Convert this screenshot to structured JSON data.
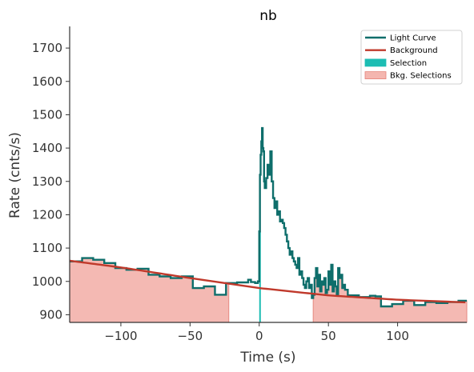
{
  "chart_data": {
    "type": "line",
    "title": "nb",
    "xlabel": "Time (s)",
    "ylabel": "Rate (cnts/s)",
    "xlim": [
      -137,
      150
    ],
    "ylim": [
      877,
      1765
    ],
    "xticks": [
      -100,
      -50,
      0,
      50,
      100
    ],
    "yticks": [
      900,
      1000,
      1100,
      1200,
      1300,
      1400,
      1500,
      1600,
      1700
    ],
    "grid": false,
    "legend_position": "top-right",
    "colors": {
      "light_curve": "#0e6e6b",
      "background": "#c0392b",
      "selection": "#1dbdb3",
      "bkg_selection_fill": "#f4b6af",
      "bkg_selection_edge": "#e5837a",
      "axis": "#333333"
    },
    "legend": [
      {
        "label": "Light Curve",
        "kind": "line",
        "color": "#0e6e6b"
      },
      {
        "label": "Background",
        "kind": "line",
        "color": "#c0392b"
      },
      {
        "label": "Selection",
        "kind": "patch",
        "color": "#1dbdb3"
      },
      {
        "label": "Bkg. Selections",
        "kind": "patch",
        "color": "#f4b6af"
      }
    ],
    "bkg_selections": [
      [
        -137,
        -22
      ],
      [
        39,
        150
      ]
    ],
    "selection": [
      0,
      1
    ],
    "background_model": {
      "x": [
        -137,
        -100,
        -50,
        0,
        50,
        100,
        150
      ],
      "y": [
        1062,
        1042,
        1010,
        980,
        958,
        945,
        937
      ]
    },
    "series": [
      {
        "name": "Light Curve",
        "x": [
          -137,
          -128,
          -120,
          -112,
          -104,
          -96,
          -88,
          -80,
          -72,
          -64,
          -56,
          -48,
          -40,
          -32,
          -24,
          -16,
          -8,
          -6,
          -3,
          -1,
          0,
          0.5,
          1,
          1.5,
          2,
          2.5,
          3,
          3.5,
          4,
          5,
          6,
          7,
          8,
          9,
          10,
          11,
          12,
          13,
          14,
          15,
          16,
          17,
          18,
          19,
          20,
          21,
          22,
          23,
          24,
          25,
          26,
          27,
          28,
          29,
          30,
          31,
          32,
          33,
          34,
          35,
          36,
          37,
          38,
          39,
          40,
          41,
          42,
          43,
          44,
          45,
          46,
          47,
          48,
          49,
          50,
          51,
          52,
          53,
          54,
          55,
          56,
          57,
          58,
          59,
          60,
          61,
          62,
          64,
          72,
          80,
          84,
          88,
          96,
          104,
          112,
          120,
          128,
          136,
          144,
          150
        ],
        "y": [
          1060,
          1070,
          1065,
          1055,
          1040,
          1035,
          1038,
          1020,
          1015,
          1010,
          1015,
          980,
          985,
          960,
          995,
          997,
          1005,
          998,
          995,
          1000,
          1150,
          1320,
          1380,
          1420,
          1460,
          1400,
          1390,
          1300,
          1280,
          1310,
          1350,
          1320,
          1390,
          1300,
          1250,
          1220,
          1240,
          1200,
          1210,
          1180,
          1185,
          1175,
          1160,
          1140,
          1120,
          1100,
          1080,
          1090,
          1070,
          1060,
          1050,
          1040,
          1070,
          1020,
          1030,
          1010,
          990,
          980,
          1000,
          1010,
          980,
          990,
          950,
          960,
          1010,
          1040,
          985,
          1020,
          970,
          1000,
          990,
          1010,
          965,
          975,
          1030,
          990,
          1050,
          970,
          1000,
          985,
          960,
          1040,
          1010,
          1020,
          980,
          990,
          975,
          958,
          953,
          957,
          955,
          925,
          932,
          942,
          929,
          938,
          935,
          938,
          942,
          942
        ]
      }
    ]
  }
}
